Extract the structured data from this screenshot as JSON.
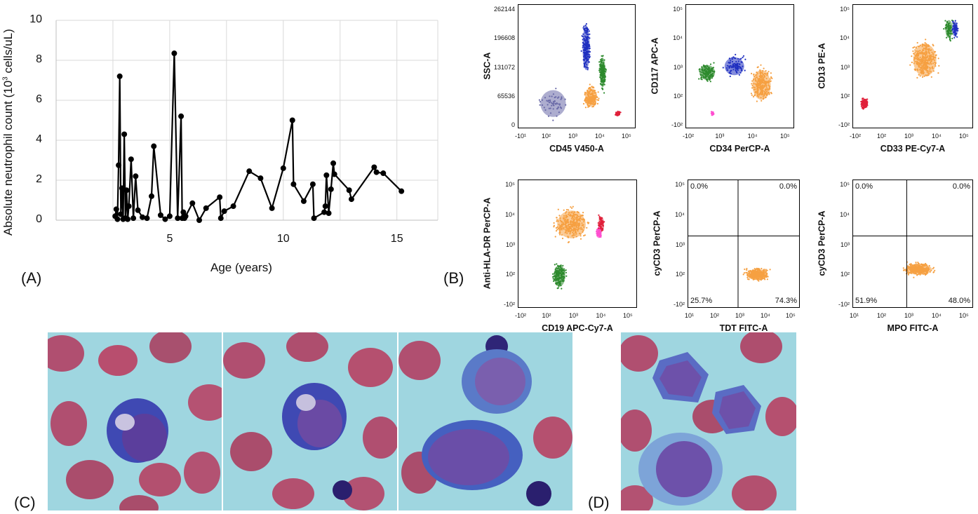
{
  "panel_labels": {
    "a": "(A)",
    "b": "(B)",
    "c": "(C)",
    "d": "(D)"
  },
  "chart_data": {
    "type": "line",
    "xlabel": "Age (years)",
    "ylabel_main": "Absolute neutrophil count (10",
    "ylabel_sup": "3",
    "ylabel_tail": " cells/uL)",
    "xlim": [
      0,
      16.8
    ],
    "ylim": [
      0,
      10
    ],
    "xticks": [
      5,
      10,
      15
    ],
    "yticks": [
      0,
      2,
      4,
      6,
      8,
      10
    ],
    "grid": true,
    "x": [
      2.6,
      2.65,
      2.7,
      2.75,
      2.8,
      2.85,
      2.9,
      2.95,
      3.0,
      3.05,
      3.1,
      3.15,
      3.2,
      3.3,
      3.4,
      3.5,
      3.6,
      3.8,
      4.0,
      4.2,
      4.3,
      4.6,
      4.8,
      5.0,
      5.2,
      5.35,
      5.5,
      5.55,
      5.6,
      5.65,
      5.7,
      6.0,
      6.3,
      6.6,
      7.2,
      7.25,
      7.4,
      7.8,
      8.5,
      9.0,
      9.5,
      10.0,
      10.4,
      10.45,
      10.9,
      11.3,
      11.35,
      11.8,
      11.85,
      11.9,
      12.0,
      12.1,
      12.2,
      12.25,
      12.9,
      13.0,
      14.0,
      14.1,
      14.4,
      15.2
    ],
    "y": [
      0.2,
      0.55,
      0.05,
      2.75,
      7.2,
      0.3,
      1.6,
      0.05,
      4.3,
      0.1,
      1.5,
      0.05,
      0.7,
      3.05,
      0.1,
      2.2,
      0.5,
      0.15,
      0.1,
      1.2,
      3.7,
      0.25,
      0.05,
      0.2,
      8.35,
      0.1,
      5.2,
      0.1,
      0.4,
      0.1,
      0.2,
      0.85,
      0.0,
      0.6,
      1.15,
      0.1,
      0.45,
      0.7,
      2.45,
      2.1,
      0.6,
      2.6,
      5.0,
      1.8,
      0.95,
      1.8,
      0.1,
      0.4,
      0.7,
      2.25,
      0.35,
      1.55,
      2.85,
      2.3,
      1.5,
      1.05,
      2.65,
      2.4,
      2.35,
      1.45
    ]
  },
  "flow": [
    {
      "xlabel": "CD45 V450-A",
      "ylabel": "SSC-A",
      "yticks": [
        "262144",
        "196608",
        "131072",
        "65536",
        "0"
      ],
      "xticks": [
        "-10¹",
        "10²",
        "10³",
        "10⁴",
        "10⁵"
      ],
      "quads": null
    },
    {
      "xlabel": "CD34 PerCP-A",
      "ylabel": "CD117 APC-A",
      "yticks": [
        "10⁵",
        "10⁴",
        "10³",
        "10²",
        "-10²"
      ],
      "xticks": [
        "-10²",
        "10³",
        "10⁴",
        "10⁵"
      ],
      "quads": null
    },
    {
      "xlabel": "CD33 PE-Cy7-A",
      "ylabel": "CD13 PE-A",
      "yticks": [
        "10⁵",
        "10⁴",
        "10³",
        "10²",
        "-10²"
      ],
      "xticks": [
        "-10²",
        "10²",
        "10³",
        "10⁴",
        "10⁵"
      ],
      "quads": null
    },
    {
      "xlabel": "CD19 APC-Cy7-A",
      "ylabel": "Anti-HLA-DR PerCP-A",
      "yticks": [
        "10⁵",
        "10⁴",
        "10³",
        "10²",
        "-10²"
      ],
      "xticks": [
        "-10²",
        "10²",
        "10³",
        "10⁴",
        "10⁵"
      ],
      "quads": null
    },
    {
      "xlabel": "TDT FITC-A",
      "ylabel": "cyCD3 PerCP-A",
      "yticks": [
        "10⁵",
        "10⁴",
        "10³",
        "10²",
        "-10²"
      ],
      "xticks": [
        "10¹",
        "10²",
        "10³",
        "10⁴",
        "10⁵"
      ],
      "quads": [
        "0.0%",
        "0.0%",
        "25.7%",
        "74.3%"
      ]
    },
    {
      "xlabel": "MPO FITC-A",
      "ylabel": "cyCD3 PerCP-A",
      "yticks": [
        "10⁵",
        "10⁴",
        "10³",
        "10²",
        "-10²"
      ],
      "xticks": [
        "10¹",
        "10²",
        "10³",
        "10⁴",
        "10⁵"
      ],
      "quads": [
        "0.0%",
        "0.0%",
        "51.9%",
        "48.0%"
      ]
    }
  ],
  "colors": {
    "line": "#000000",
    "grid": "#d9d9d9",
    "orange": "#f5a042",
    "background": "#9fd6e0",
    "rbc": "#b04f70"
  }
}
